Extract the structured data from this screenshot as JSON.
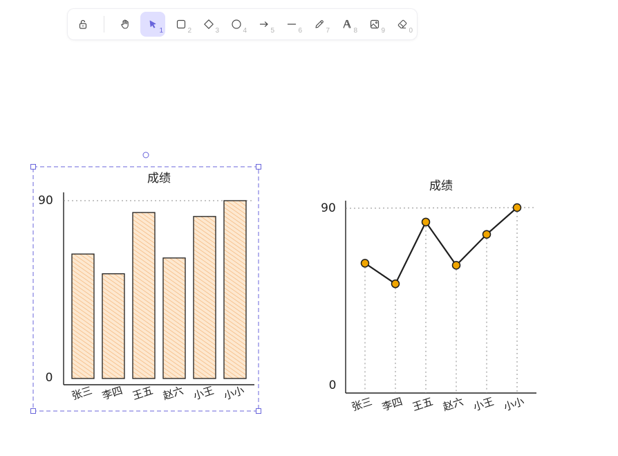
{
  "toolbar": {
    "tools": [
      {
        "name": "lock",
        "key": ""
      },
      {
        "name": "hand",
        "key": ""
      },
      {
        "name": "selection",
        "key": "1"
      },
      {
        "name": "rectangle",
        "key": "2"
      },
      {
        "name": "diamond",
        "key": "3"
      },
      {
        "name": "ellipse",
        "key": "4"
      },
      {
        "name": "arrow",
        "key": "5"
      },
      {
        "name": "line",
        "key": "6"
      },
      {
        "name": "draw",
        "key": "7"
      },
      {
        "name": "text",
        "key": "8"
      },
      {
        "name": "image",
        "key": "9"
      },
      {
        "name": "eraser",
        "key": "0"
      }
    ],
    "active_tool": "selection",
    "accent": "#6965db"
  },
  "chart_data": [
    {
      "type": "bar",
      "title": "成绩",
      "categories": [
        "张三",
        "李四",
        "王五",
        "赵六",
        "小王",
        "小小"
      ],
      "values": [
        63,
        53,
        84,
        61,
        82,
        90
      ],
      "yticks": [
        "0",
        "90"
      ],
      "ylim": [
        0,
        90
      ],
      "bar_color": "#f5c08a",
      "selected": true
    },
    {
      "type": "line",
      "title": "成绩",
      "categories": [
        "张三",
        "李四",
        "王五",
        "赵六",
        "小王",
        "小小"
      ],
      "values": [
        63,
        53,
        83,
        62,
        77,
        90
      ],
      "yticks": [
        "0",
        "90"
      ],
      "ylim": [
        0,
        90
      ],
      "point_color": "#f0a500"
    }
  ]
}
